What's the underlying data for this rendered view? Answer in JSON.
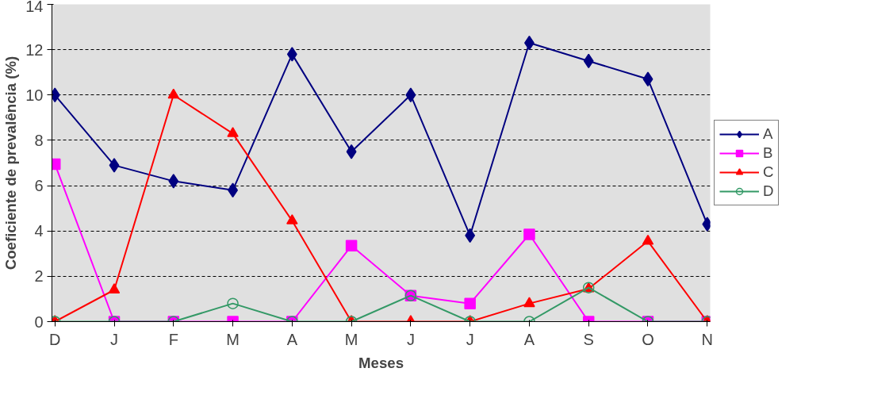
{
  "chart_data": {
    "type": "line",
    "xlabel": "Meses",
    "ylabel": "Coeficiente de prevalência (%)",
    "categories": [
      "D",
      "J",
      "F",
      "M",
      "A",
      "M",
      "J",
      "J",
      "A",
      "S",
      "O",
      "N"
    ],
    "ylim": [
      0,
      14
    ],
    "yticks": [
      0,
      2,
      4,
      6,
      8,
      10,
      12,
      14
    ],
    "grid": "y",
    "legend": "right",
    "line_style": "solid",
    "series": [
      {
        "name": "A",
        "color": "#000080",
        "marker": "diamond",
        "values": [
          10,
          6.9,
          6.2,
          5.8,
          11.8,
          7.5,
          10,
          3.8,
          12.3,
          11.5,
          10.7,
          4.3
        ]
      },
      {
        "name": "B",
        "color": "#ff00ff",
        "marker": "square",
        "values": [
          6.95,
          0,
          0,
          0,
          0,
          3.35,
          1.15,
          0.8,
          3.85,
          0,
          0,
          0
        ]
      },
      {
        "name": "C",
        "color": "#ff0000",
        "marker": "triangle",
        "values": [
          0,
          1.4,
          10,
          8.3,
          4.45,
          0,
          0,
          0,
          0.8,
          1.45,
          3.55,
          0
        ]
      },
      {
        "name": "D",
        "color": "#339966",
        "marker": "circle",
        "values": [
          0,
          0,
          0,
          0.8,
          0,
          0,
          1.15,
          0,
          0,
          1.5,
          0,
          0
        ]
      }
    ]
  }
}
